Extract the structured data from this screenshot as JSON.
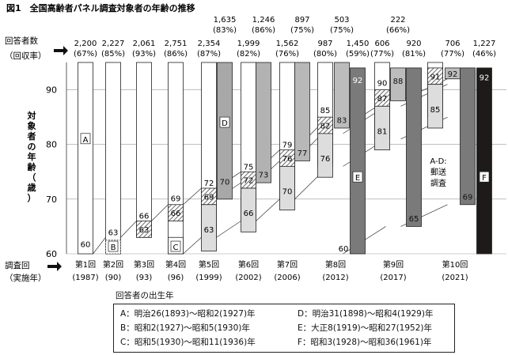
{
  "chart_data": {
    "type": "bar",
    "title": "図1　全国高齢者パネル調査対象者の年齢の推移",
    "ylabel": "対象者の年齢（歳）",
    "ylim": [
      60,
      95
    ],
    "yticks": [
      "60",
      "70",
      "80",
      "90"
    ],
    "x_axis_label": [
      "調査回",
      "（実施年）"
    ],
    "counts_label": [
      "回答者数",
      "（回収率）"
    ],
    "waves": [
      {
        "label": "第1回",
        "year": "(1987)"
      },
      {
        "label": "第2回",
        "year": "(90)"
      },
      {
        "label": "第3回",
        "year": "(93)"
      },
      {
        "label": "第4回",
        "year": "(96)"
      },
      {
        "label": "第5回",
        "year": "(1999)"
      },
      {
        "label": "第6回",
        "year": "(2002)"
      },
      {
        "label": "第7回",
        "year": "(2006)"
      },
      {
        "label": "第8回",
        "year": "(2012)"
      },
      {
        "label": "第9回",
        "year": "(2017)"
      },
      {
        "label": "第10回",
        "year": "(2021)"
      }
    ],
    "cohorts": [
      {
        "id": "A",
        "wave": 0,
        "bottom": 60,
        "top": 95,
        "labels": [
          "60"
        ],
        "fill": "#ffffff"
      },
      {
        "id": "B",
        "wave": 1,
        "bottom": 60,
        "top": 95,
        "labels": [
          "63"
        ],
        "fill": "#ffffff"
      },
      {
        "id": "C",
        "wave": 3,
        "bottom": 60,
        "top": 95,
        "labels": [],
        "fill": "#ffffff"
      },
      {
        "id": "D",
        "wave": 4,
        "bottom": 70,
        "top": 95,
        "labels": [
          "70"
        ],
        "fill": "#a8a8a8"
      },
      {
        "id": "E",
        "wave": 7,
        "bottom": 60,
        "top": 95,
        "labels": [
          "60",
          "92"
        ],
        "fill": "#7a7a7a"
      },
      {
        "id": "F",
        "wave": 9,
        "bottom": 69,
        "top": 95,
        "labels": [
          "69",
          "92"
        ],
        "fill": "#1e1a1a"
      }
    ],
    "annotations": [
      "A-D:",
      "郵送",
      "調査"
    ],
    "responses": [
      {
        "n": "2,200",
        "rate": "(67%)",
        "row": 0
      },
      {
        "n": "2,227",
        "rate": "(85%)",
        "row": 0
      },
      {
        "n": "2,061",
        "rate": "(93%)",
        "row": 0
      },
      {
        "n": "2,751",
        "rate": "(86%)",
        "row": 0
      },
      {
        "n": "2,354",
        "rate": "(87%)",
        "row": 0
      },
      {
        "n": "1,635",
        "rate": "(83%)",
        "row": 1
      },
      {
        "n": "1,999",
        "rate": "(82%)",
        "row": 0
      },
      {
        "n": "1,246",
        "rate": "(86%)",
        "row": 1
      },
      {
        "n": "1,562",
        "rate": "(76%)",
        "row": 0
      },
      {
        "n": "897",
        "rate": "(75%)",
        "row": 1
      },
      {
        "n": "987",
        "rate": "(80%)",
        "row": 0
      },
      {
        "n": "503",
        "rate": "(75%)",
        "row": 1
      },
      {
        "n": "1,450",
        "rate": "(59%)",
        "row": 0
      },
      {
        "n": "606",
        "rate": "(77%)",
        "row": 0
      },
      {
        "n": "222",
        "rate": "(66%)",
        "row": 1
      },
      {
        "n": "920",
        "rate": "(81%)",
        "row": 0
      },
      {
        "n": "706",
        "rate": "(77%)",
        "row": 0
      },
      {
        "n": "1,227",
        "rate": "(46%)",
        "row": 0
      }
    ]
  },
  "legend": {
    "title": "回答者の出生年",
    "items": [
      "A：明治26(1893)～昭和2(1927)年",
      "B：昭和2(1927)～昭和5(1930)年",
      "C：昭和5(1930)～昭和11(1936)年",
      "D：明治31(1898)～昭和4(1929)年",
      "E：大正8(1919)～昭和27(1952)年",
      "F：昭和3(1928)～昭和36(1961)年"
    ]
  }
}
